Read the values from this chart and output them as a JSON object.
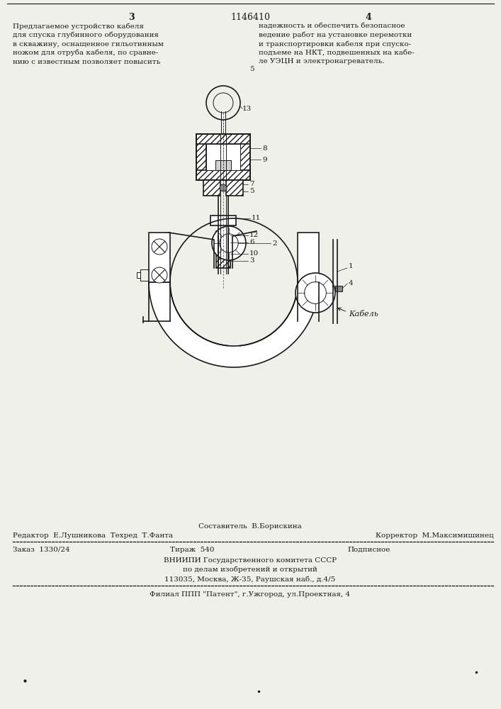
{
  "page_number_left": "3",
  "page_number_center": "1146410",
  "page_number_right": "4",
  "text_left": "Предлагаемое устройство кабеля\nдля спуска глубинного оборудования\nв скважину, оснащенное гильотинным\nножом для отруба кабеля, по сравне-\nнию с известным позволяет повысить",
  "text_right": "надежность и обеспечить безопасное\nведение работ на установке перемотки\nи транспортировки кабеля при спуско-\nподъеме на НКТ, подвешенных на кабе-\nле УЭЦН и электронагреватель.",
  "footer_sestavitel": "Составитель  В.Борискина",
  "footer_editor": "Редактор  Е.Лушникова  Техред  Т.Фанта",
  "footer_korrektor": "Корректор  М.Максимишинец",
  "footer_zakaz": "Заказ  1330/24",
  "footer_tirazh": "Тираж  540",
  "footer_podpisnoe": "Подписное",
  "footer_vniipи": "ВНИИПИ Государственного комитета СССР",
  "footer_delam": "по делам изобретений и открытий",
  "footer_address": "113035, Москва, Ж-35, Раушская наб., д.4/5",
  "footer_filial": "Филиал ППП \"Патент\", г.Ужгород, ул.Проектная, 4",
  "bg_color": "#f0f0eb",
  "text_color": "#1a1a1a",
  "drawing_color": "#1a1a1a",
  "hatch_color": "#1a1a1a"
}
